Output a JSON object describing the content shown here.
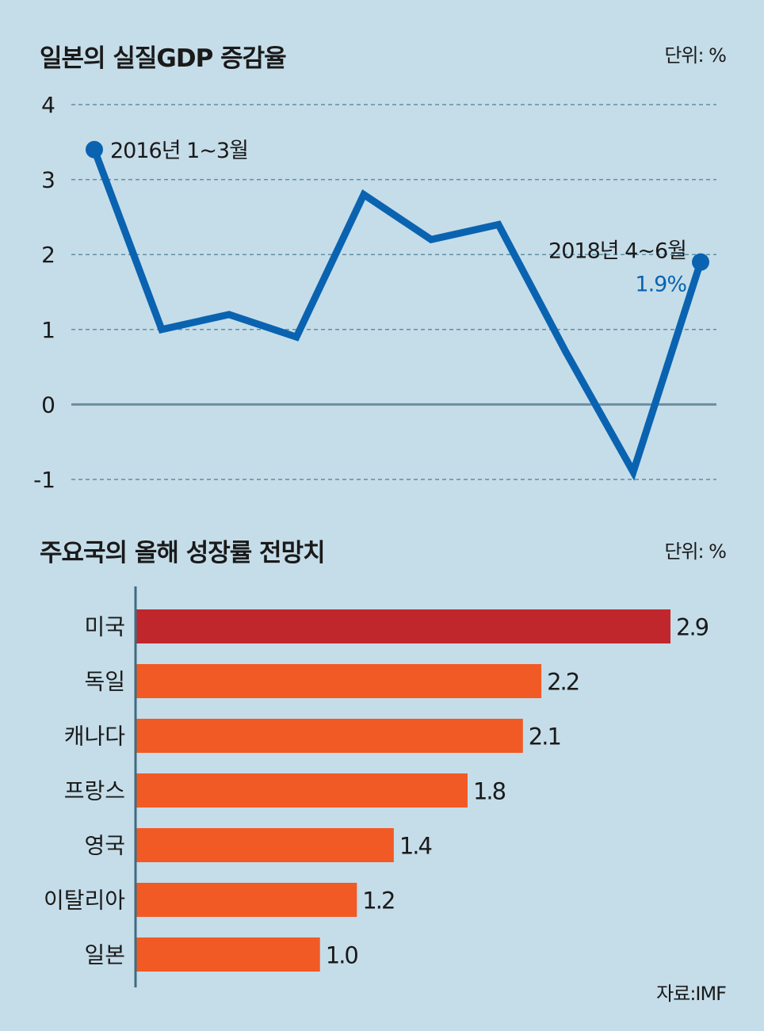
{
  "chart_data": [
    {
      "type": "line",
      "title": "일본의 실질GDP 증감율",
      "unit": "단위: %",
      "y": [
        3.4,
        1.0,
        1.2,
        0.9,
        2.8,
        2.2,
        2.4,
        0.7,
        -0.9,
        1.9
      ],
      "ylim": [
        -1,
        4
      ],
      "yticks": [
        4,
        3,
        2,
        1,
        0,
        -1
      ],
      "grid": true,
      "annotations": {
        "start": "2016년 1~3월",
        "end": "2018년 4~6월",
        "end_value": "1.9%"
      },
      "colors": {
        "line": "#0a63b0",
        "grid": "#5f8fa3",
        "zero": "#6a8fa0"
      }
    },
    {
      "type": "bar",
      "orientation": "horizontal",
      "title": "주요국의 올해 성장률 전망치",
      "unit": "단위: %",
      "categories": [
        "미국",
        "독일",
        "캐나다",
        "프랑스",
        "영국",
        "이탈리아",
        "일본"
      ],
      "values": [
        2.9,
        2.2,
        2.1,
        1.8,
        1.4,
        1.2,
        1.0
      ],
      "labels": [
        "2.9",
        "2.2",
        "2.1",
        "1.8",
        "1.4",
        "1.2",
        "1.0"
      ],
      "colors": {
        "highlight": "#c0272d",
        "bar": "#f15a24",
        "axis": "#3f6b80"
      }
    }
  ],
  "source": "자료:IMF"
}
